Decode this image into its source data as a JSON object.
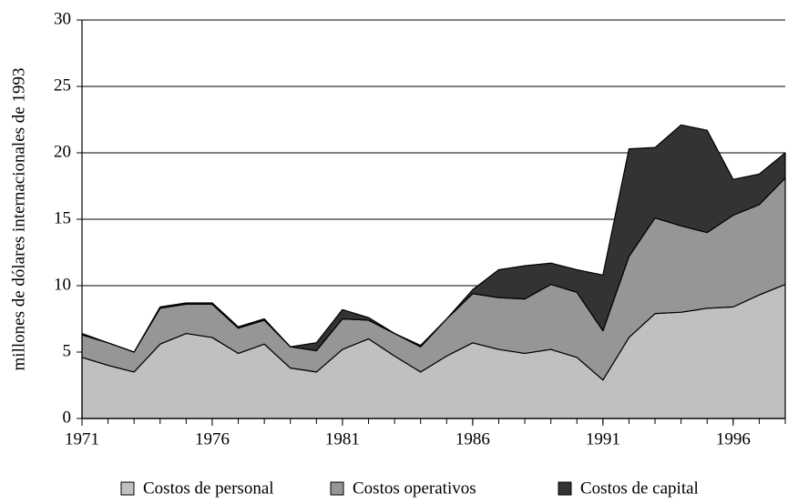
{
  "chart_data": {
    "type": "stacked_area",
    "y_label": "millones de dólares internacionales de 1993",
    "x": [
      1971,
      1972,
      1973,
      1974,
      1975,
      1976,
      1977,
      1978,
      1979,
      1980,
      1981,
      1982,
      1983,
      1984,
      1985,
      1986,
      1987,
      1988,
      1989,
      1990,
      1991,
      1992,
      1993,
      1994,
      1995,
      1996,
      1997,
      1998
    ],
    "series": [
      {
        "name": "Costos de personal",
        "color": "#c0c0c0",
        "values": [
          4.6,
          4.0,
          3.5,
          5.6,
          6.4,
          6.1,
          4.9,
          5.6,
          3.8,
          3.5,
          5.2,
          6.0,
          4.7,
          3.5,
          4.7,
          5.7,
          5.2,
          4.9,
          5.2,
          4.6,
          2.9,
          6.1,
          7.9,
          8.0,
          8.3,
          8.4,
          9.3,
          10.1
        ]
      },
      {
        "name": "Costos operativos",
        "color": "#969696",
        "values": [
          1.7,
          1.7,
          1.5,
          2.7,
          2.2,
          2.5,
          1.9,
          1.8,
          1.6,
          1.6,
          2.3,
          1.4,
          1.7,
          1.9,
          2.8,
          3.7,
          3.9,
          4.1,
          4.9,
          4.9,
          3.7,
          6.1,
          7.2,
          6.5,
          5.7,
          6.9,
          6.8,
          8.0
        ]
      },
      {
        "name": "Costos de capital",
        "color": "#333333",
        "values": [
          0.1,
          0,
          0,
          0.1,
          0.1,
          0.1,
          0.1,
          0.1,
          0,
          0.6,
          0.7,
          0.2,
          0,
          0.1,
          0,
          0.3,
          2.1,
          2.5,
          1.6,
          1.7,
          4.2,
          8.1,
          5.3,
          7.6,
          7.7,
          2.7,
          2.3,
          1.9
        ]
      }
    ],
    "xlim": [
      1971,
      1998
    ],
    "xticks": [
      1971,
      1976,
      1981,
      1986,
      1991,
      1996
    ],
    "ylim": [
      0,
      30
    ],
    "yticks": [
      0,
      5,
      10,
      15,
      20,
      25,
      30
    ],
    "grid": true,
    "legend": "bottom"
  }
}
